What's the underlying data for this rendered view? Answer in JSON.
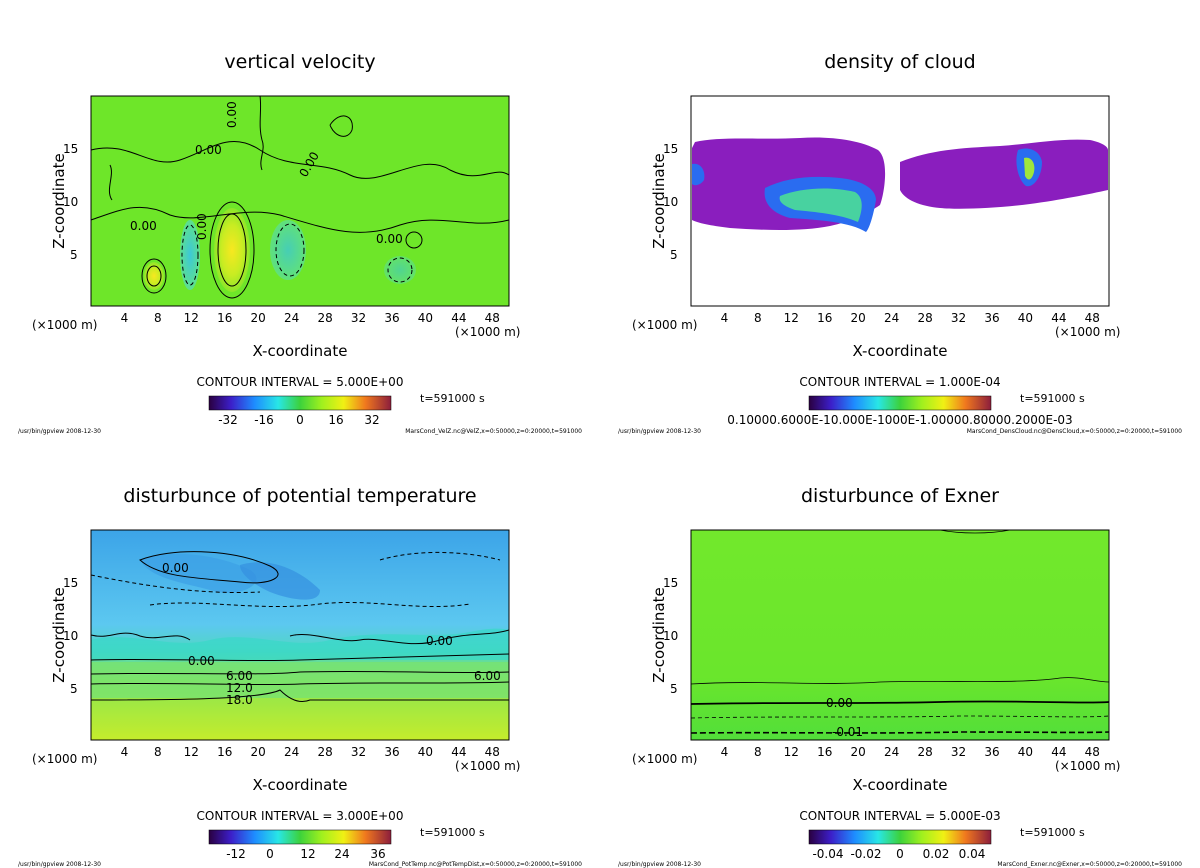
{
  "colors": {
    "velocity_field": "#6ee629",
    "cloud_purple": "#8a1ebe",
    "potential_top": "#4ab4ee",
    "potential_bottom": "#b7ea24",
    "exner_field": "#6ae62c",
    "frame": "#000000"
  },
  "common": {
    "x_axis_label": "X-coordinate",
    "y_axis_label": "Z-coordinate",
    "x_unit_left": "(×1000 m)",
    "x_unit_right": "(×1000 m)",
    "x_ticks": [
      "4",
      "8",
      "12",
      "16",
      "20",
      "24",
      "28",
      "32",
      "36",
      "40",
      "44",
      "48"
    ],
    "y_ticks": [
      "5",
      "10",
      "15"
    ],
    "time_label": "t=591000 s",
    "footer_left": "/usr/bin/gpview 2008-12-30"
  },
  "chart_data": [
    {
      "id": "velocity",
      "type": "heatmap",
      "title": "vertical velocity",
      "xlabel": "X-coordinate",
      "ylabel": "Z-coordinate",
      "xlim": [
        0,
        50
      ],
      "ylim": [
        0,
        20
      ],
      "contour_interval": "CONTOUR INTERVAL = 5.000E+00",
      "colorbar_ticks": [
        "-32",
        "-16",
        "0",
        "16",
        "32"
      ],
      "contour_labels": [
        "0.00",
        "0.00",
        "0.00",
        "0.00",
        "0.00",
        "0.00"
      ],
      "footer_right": "MarsCond_VelZ.nc@VelZ,x=0:50000,z=0:20000,t=591000"
    },
    {
      "id": "cloud",
      "type": "heatmap",
      "title": "density of cloud",
      "xlabel": "X-coordinate",
      "ylabel": "Z-coordinate",
      "xlim": [
        0,
        50
      ],
      "ylim": [
        0,
        20
      ],
      "contour_interval": "CONTOUR INTERVAL = 1.000E-04",
      "colorbar_ticks": [
        "0.10000.6000E-10.000E-1000E-1.00000.80000.2000E-03"
      ],
      "footer_right": "MarsCond_DensCloud.nc@DensCloud,x=0:50000,z=0:20000,t=591000"
    },
    {
      "id": "potential",
      "type": "heatmap",
      "title": "disturbunce of potential temperature",
      "xlabel": "X-coordinate",
      "ylabel": "Z-coordinate",
      "xlim": [
        0,
        50
      ],
      "ylim": [
        0,
        20
      ],
      "contour_interval": "CONTOUR INTERVAL = 3.000E+00",
      "colorbar_ticks": [
        "-12",
        "0",
        "12",
        "24",
        "36"
      ],
      "contour_labels": [
        "0.00",
        "0.00",
        "0.00",
        "6.00",
        "12.0",
        "18.0",
        "6.00"
      ],
      "footer_right": "MarsCond_PotTemp.nc@PotTempDist,x=0:50000,z=0:20000,t=591000"
    },
    {
      "id": "exner",
      "type": "heatmap",
      "title": "disturbunce of Exner",
      "xlabel": "X-coordinate",
      "ylabel": "Z-coordinate",
      "xlim": [
        0,
        50
      ],
      "ylim": [
        0,
        20
      ],
      "contour_interval": "CONTOUR INTERVAL = 5.000E-03",
      "colorbar_ticks": [
        "-0.04",
        "-0.02",
        "0",
        "0.02",
        "0.04"
      ],
      "contour_labels": [
        "0.00",
        "-0.01"
      ],
      "footer_right": "MarsCond_Exner.nc@Exner,x=0:50000,z=0:20000,t=591000"
    }
  ]
}
